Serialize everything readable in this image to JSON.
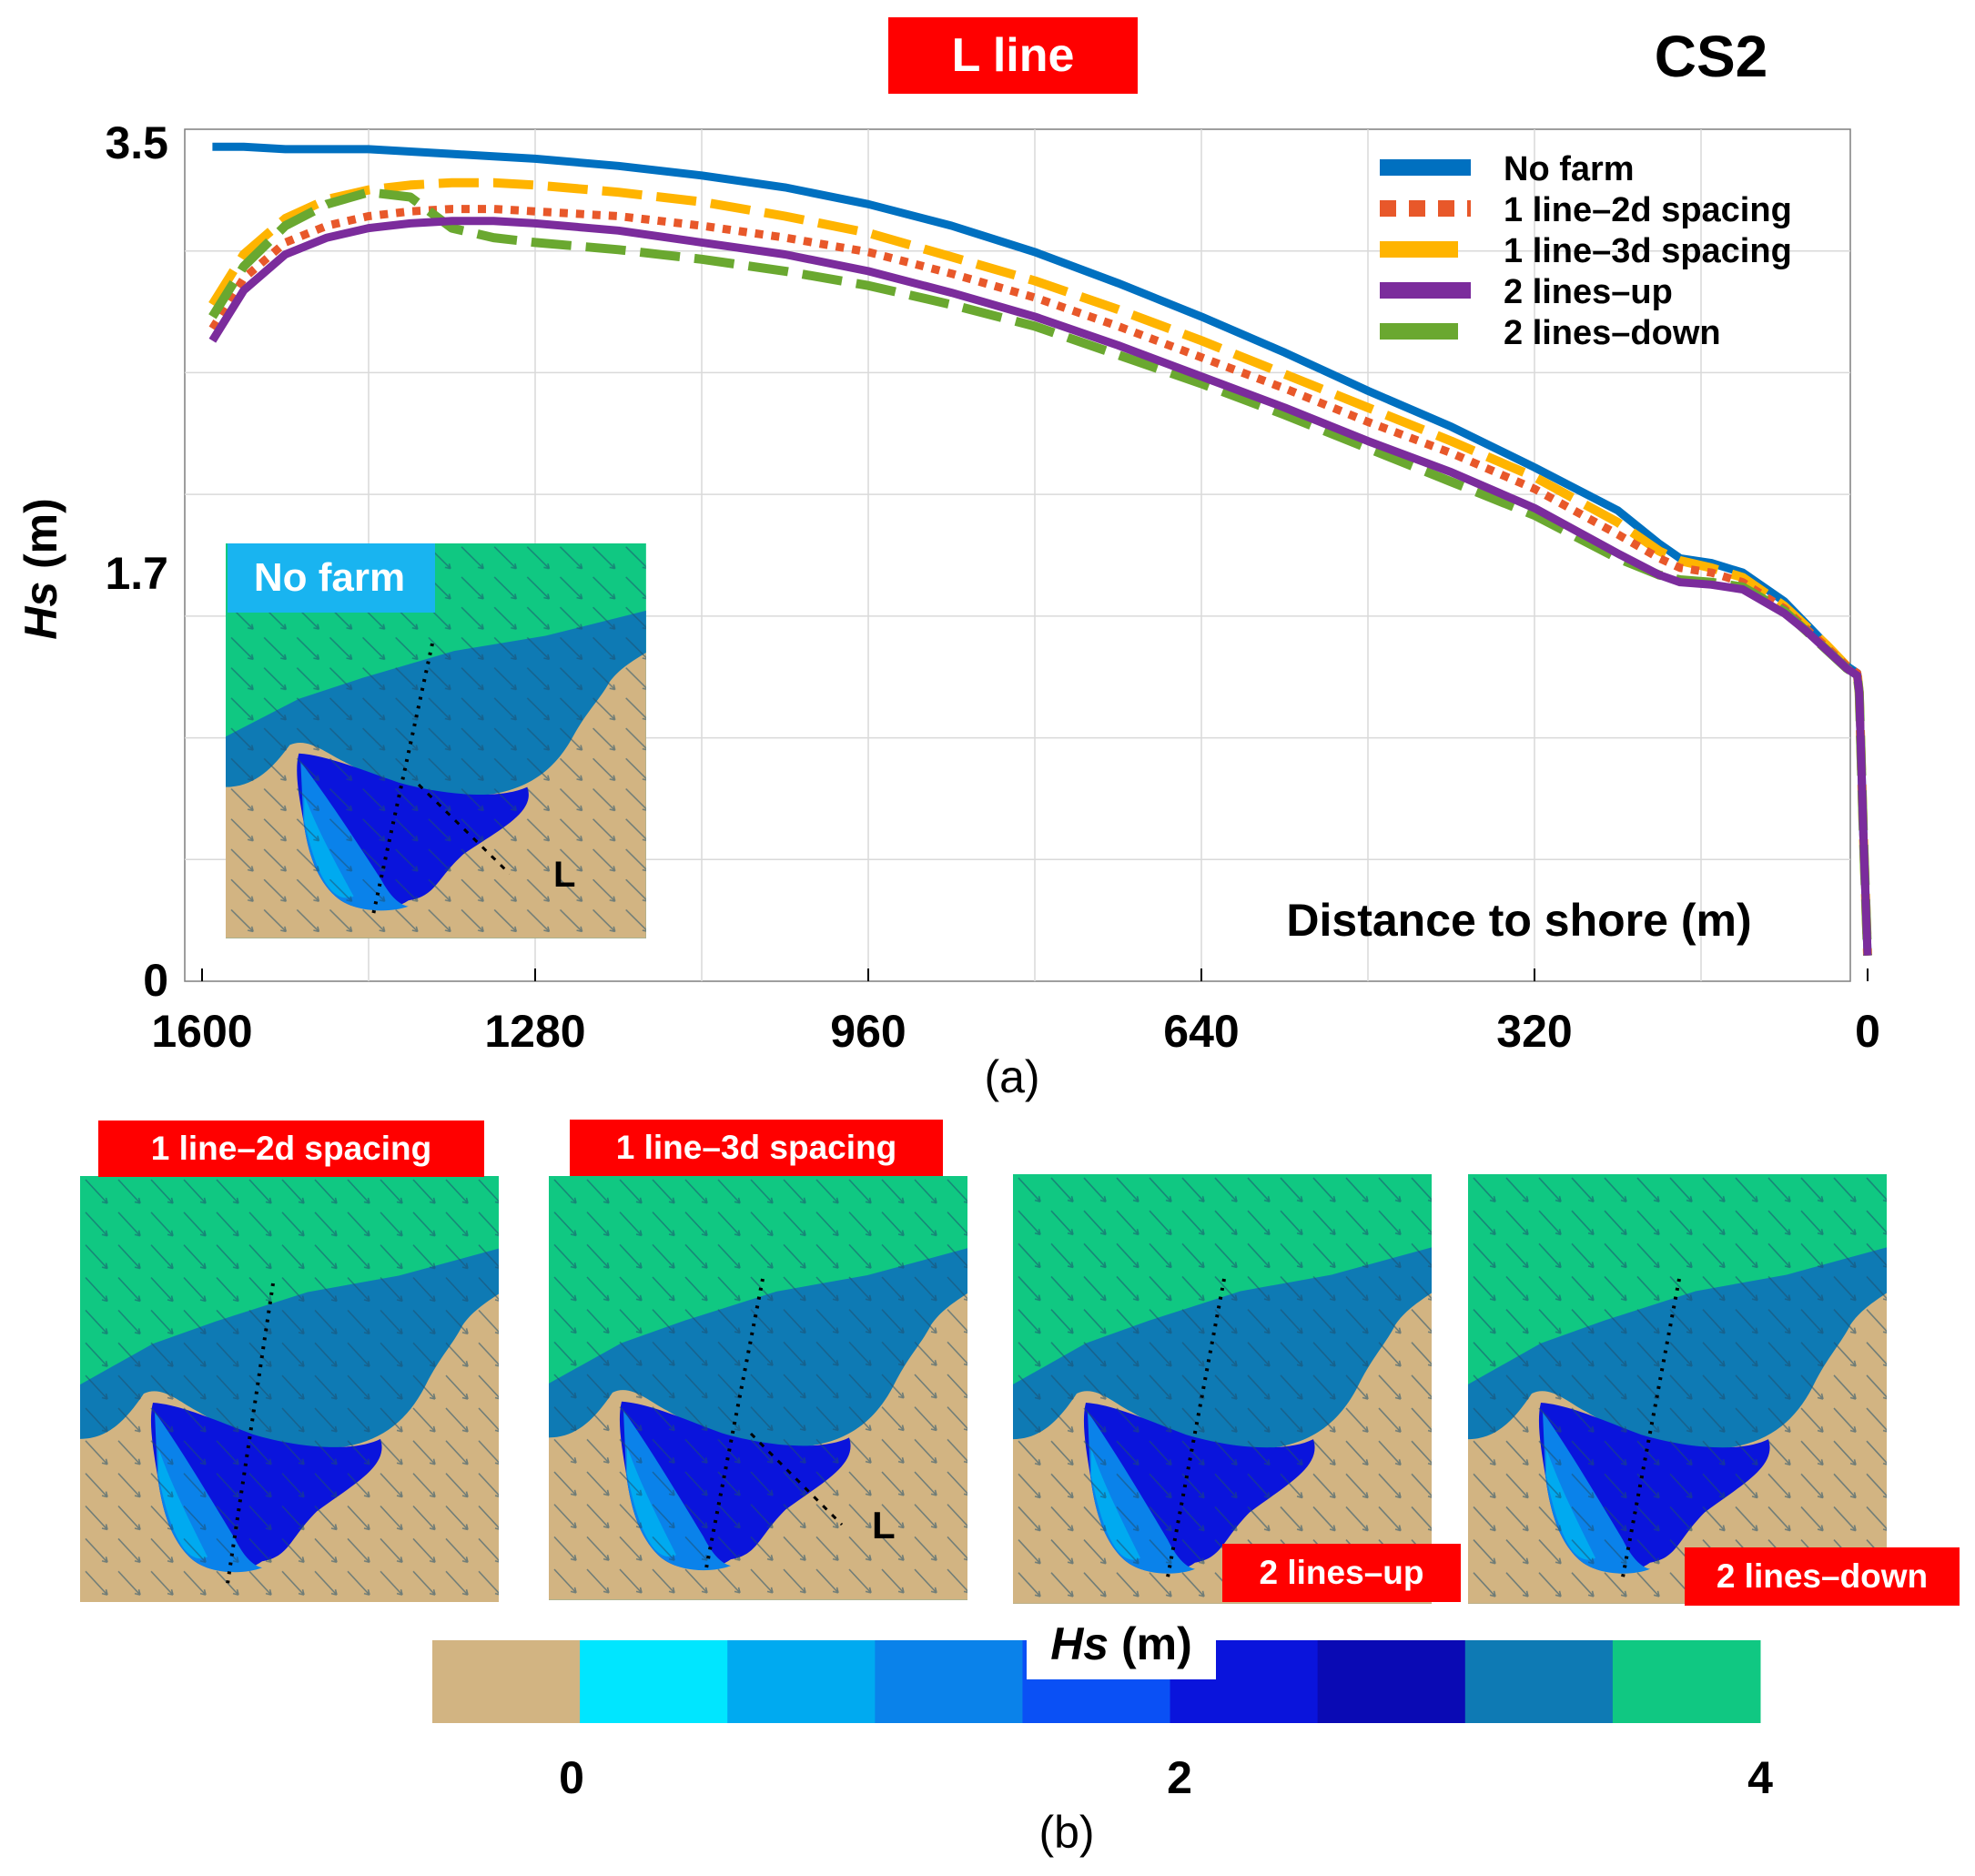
{
  "panel_a": {
    "title_badge": "L line",
    "case_label": "CS2",
    "caption": "(a)",
    "inset_label": "No farm",
    "line_marker": "L",
    "x_axis_label": "Distance to shore (m)",
    "y_axis_label": {
      "var": "Hs",
      "unit": " (m)"
    }
  },
  "panel_b": {
    "caption": "(b)",
    "maps": [
      {
        "label": "1 line–2d spacing"
      },
      {
        "label": "1 line–3d spacing",
        "line_marker": "L"
      },
      {
        "label": "2 lines–up"
      },
      {
        "label": "2 lines–down"
      }
    ],
    "colorbar": {
      "title_var": "Hs",
      "title_unit": " (m)",
      "tick_labels": [
        "0",
        "2",
        "4"
      ],
      "colors": [
        "#d2b482",
        "#00e6ff",
        "#00aaf0",
        "#0a82ea",
        "#0a50f5",
        "#0a14dc",
        "#0a0ab4",
        "#0e7ab4",
        "#10c882"
      ]
    }
  },
  "colors": {
    "no_farm": "#0070c0",
    "line_2d": "#e8582a",
    "line_3d": "#ffb400",
    "lines_up": "#7b2c9c",
    "lines_down": "#6aa830",
    "land": "#d2b482",
    "sea_high": "#10c882",
    "sea_mid": "#0e7ab4",
    "sea_low": "#0a0ab4",
    "badge": "#ff0000"
  },
  "chart_data": {
    "type": "line",
    "title": "L line",
    "xlabel": "Distance to shore (m)",
    "ylabel": "Hs (m)",
    "xlim": [
      1600,
      0
    ],
    "ylim": [
      0,
      3.5
    ],
    "x_ticks": [
      1600,
      1280,
      960,
      640,
      320,
      0
    ],
    "y_ticks": [
      0,
      1.7,
      3.5
    ],
    "legend_position": "top-right",
    "x": [
      1590,
      1560,
      1520,
      1480,
      1440,
      1400,
      1360,
      1320,
      1280,
      1200,
      1120,
      1040,
      960,
      880,
      800,
      720,
      640,
      560,
      480,
      400,
      320,
      240,
      200,
      180,
      150,
      120,
      80,
      60,
      40,
      20,
      10,
      8,
      4,
      0
    ],
    "series": [
      {
        "name": "No farm",
        "values": [
          3.48,
          3.48,
          3.47,
          3.47,
          3.47,
          3.46,
          3.45,
          3.44,
          3.43,
          3.4,
          3.36,
          3.31,
          3.24,
          3.15,
          3.04,
          2.91,
          2.77,
          2.62,
          2.46,
          2.31,
          2.14,
          1.96,
          1.82,
          1.76,
          1.74,
          1.7,
          1.58,
          1.49,
          1.4,
          1.31,
          1.28,
          1.2,
          0.6,
          0.1
        ]
      },
      {
        "name": "1 line–2d spacing",
        "values": [
          2.72,
          2.93,
          3.08,
          3.15,
          3.19,
          3.21,
          3.22,
          3.22,
          3.21,
          3.19,
          3.15,
          3.1,
          3.04,
          2.95,
          2.85,
          2.73,
          2.6,
          2.47,
          2.33,
          2.2,
          2.05,
          1.86,
          1.76,
          1.72,
          1.7,
          1.66,
          1.55,
          1.47,
          1.39,
          1.31,
          1.28,
          1.2,
          0.6,
          0.1
        ]
      },
      {
        "name": "1 line–3d spacing",
        "values": [
          2.82,
          3.03,
          3.18,
          3.26,
          3.3,
          3.32,
          3.33,
          3.33,
          3.32,
          3.29,
          3.25,
          3.19,
          3.12,
          3.02,
          2.92,
          2.8,
          2.67,
          2.53,
          2.39,
          2.25,
          2.1,
          1.91,
          1.79,
          1.75,
          1.72,
          1.68,
          1.56,
          1.48,
          1.4,
          1.31,
          1.28,
          1.2,
          0.6,
          0.1
        ]
      },
      {
        "name": "2 lines–up",
        "values": [
          2.67,
          2.88,
          3.03,
          3.1,
          3.14,
          3.16,
          3.17,
          3.17,
          3.16,
          3.13,
          3.08,
          3.03,
          2.96,
          2.87,
          2.77,
          2.65,
          2.52,
          2.39,
          2.25,
          2.12,
          1.97,
          1.78,
          1.69,
          1.66,
          1.65,
          1.63,
          1.53,
          1.46,
          1.38,
          1.3,
          1.27,
          1.2,
          0.6,
          0.1
        ]
      },
      {
        "name": "2 lines–down",
        "values": [
          2.77,
          2.98,
          3.15,
          3.24,
          3.29,
          3.27,
          3.14,
          3.1,
          3.08,
          3.05,
          3.01,
          2.96,
          2.9,
          2.82,
          2.73,
          2.61,
          2.49,
          2.36,
          2.22,
          2.08,
          1.94,
          1.76,
          1.69,
          1.67,
          1.66,
          1.64,
          1.54,
          1.46,
          1.38,
          1.3,
          1.27,
          1.2,
          0.6,
          0.1
        ]
      }
    ]
  }
}
